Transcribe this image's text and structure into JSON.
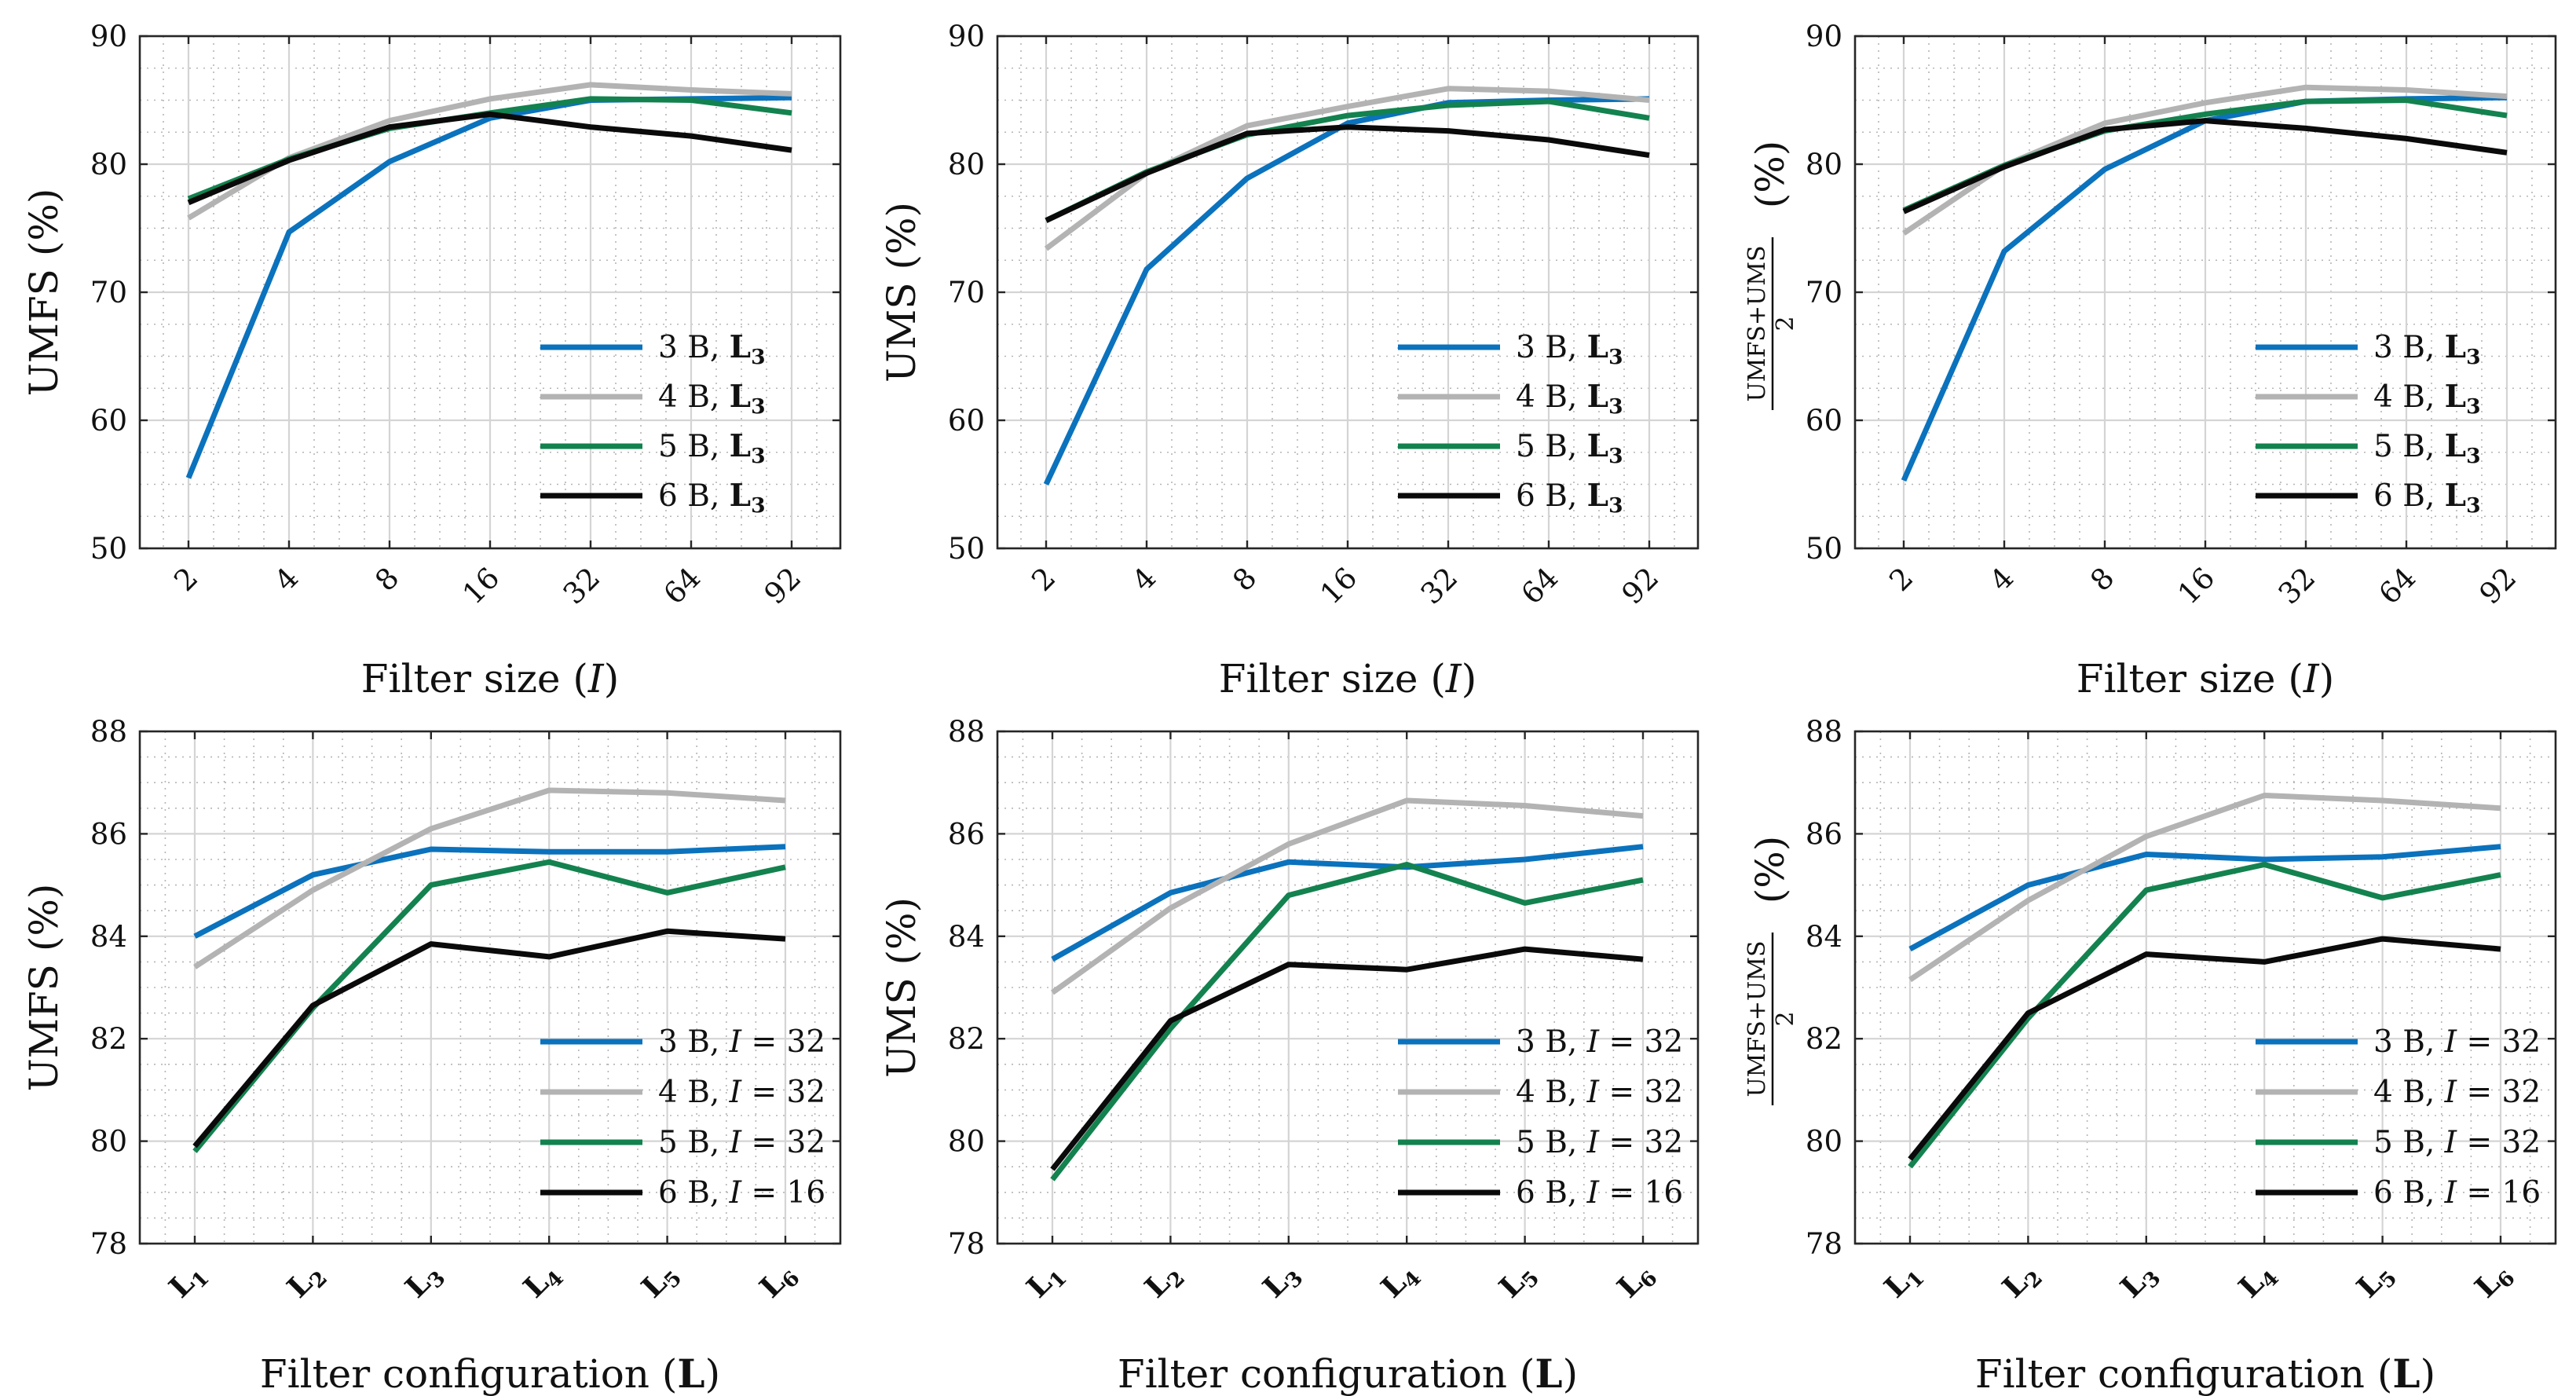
{
  "colors": {
    "series3B": "#0b72bd",
    "series4B": "#b3b3b3",
    "series5B": "#13824f",
    "series6B": "#0a0a0a",
    "grid": "#d4d4d4",
    "minorGrid": "#b5b5b5",
    "axis": "#262626"
  },
  "chart_data": [
    {
      "type": "line",
      "xlabel": "Filter size (I)",
      "ylabel": "UMFS (%)",
      "categories": [
        "2",
        "4",
        "8",
        "16",
        "32",
        "64",
        "92"
      ],
      "ylim": [
        50,
        90
      ],
      "yticks": [
        "50",
        "60",
        "70",
        "80",
        "90"
      ],
      "grid": true,
      "legend_position": "bottom-right",
      "series": [
        {
          "name": "3 B, L3",
          "values": [
            55.5,
            74.7,
            80.2,
            83.6,
            85.0,
            85.1,
            85.2
          ]
        },
        {
          "name": "4 B, L3",
          "values": [
            75.8,
            80.5,
            83.4,
            85.1,
            86.2,
            85.8,
            85.5
          ]
        },
        {
          "name": "5 B, L3",
          "values": [
            77.3,
            80.4,
            82.8,
            84.0,
            85.1,
            85.0,
            84.0
          ]
        },
        {
          "name": "6 B, L3",
          "values": [
            77.0,
            80.3,
            82.9,
            83.9,
            82.9,
            82.2,
            81.1
          ]
        }
      ]
    },
    {
      "type": "line",
      "xlabel": "Filter size (I)",
      "ylabel": "UMS (%)",
      "categories": [
        "2",
        "4",
        "8",
        "16",
        "32",
        "64",
        "92"
      ],
      "ylim": [
        50,
        90
      ],
      "yticks": [
        "50",
        "60",
        "70",
        "80",
        "90"
      ],
      "grid": true,
      "legend_position": "bottom-right",
      "series": [
        {
          "name": "3 B, L3",
          "values": [
            55.0,
            71.8,
            78.9,
            83.2,
            84.8,
            85.0,
            85.1
          ]
        },
        {
          "name": "4 B, L3",
          "values": [
            73.4,
            79.3,
            83.0,
            84.5,
            85.9,
            85.7,
            85.0
          ]
        },
        {
          "name": "5 B, L3",
          "values": [
            75.6,
            79.4,
            82.3,
            83.8,
            84.6,
            84.9,
            83.6
          ]
        },
        {
          "name": "6 B, L3",
          "values": [
            75.6,
            79.3,
            82.4,
            82.9,
            82.6,
            81.9,
            80.7
          ]
        }
      ]
    },
    {
      "type": "line",
      "xlabel": "Filter size (I)",
      "ylabel": "UMFS+UMS / 2 (%)",
      "categories": [
        "2",
        "4",
        "8",
        "16",
        "32",
        "64",
        "92"
      ],
      "ylim": [
        50,
        90
      ],
      "yticks": [
        "50",
        "60",
        "70",
        "80",
        "90"
      ],
      "grid": true,
      "legend_position": "bottom-right",
      "series": [
        {
          "name": "3 B, L3",
          "values": [
            55.3,
            73.2,
            79.6,
            83.4,
            84.9,
            85.1,
            85.2
          ]
        },
        {
          "name": "4 B, L3",
          "values": [
            74.6,
            79.9,
            83.2,
            84.8,
            86.0,
            85.8,
            85.3
          ]
        },
        {
          "name": "5 B, L3",
          "values": [
            76.4,
            79.9,
            82.6,
            83.9,
            84.9,
            85.0,
            83.8
          ]
        },
        {
          "name": "6 B, L3",
          "values": [
            76.3,
            79.8,
            82.7,
            83.4,
            82.8,
            82.0,
            80.9
          ]
        }
      ]
    },
    {
      "type": "line",
      "xlabel": "Filter configuration (L)",
      "ylabel": "UMFS (%)",
      "categories": [
        "L1",
        "L2",
        "L3",
        "L4",
        "L5",
        "L6"
      ],
      "ylim": [
        78,
        88
      ],
      "yticks": [
        "78",
        "80",
        "82",
        "84",
        "86",
        "88"
      ],
      "grid": true,
      "legend_position": "bottom-right",
      "series": [
        {
          "name": "3 B, I = 32",
          "values": [
            84.0,
            85.2,
            85.7,
            85.65,
            85.65,
            85.75
          ]
        },
        {
          "name": "4 B, I = 32",
          "values": [
            83.4,
            84.9,
            86.1,
            86.85,
            86.8,
            86.65
          ]
        },
        {
          "name": "5 B, I = 32",
          "values": [
            79.8,
            82.6,
            85.0,
            85.45,
            84.85,
            85.35
          ]
        },
        {
          "name": "6 B, I = 16",
          "values": [
            79.9,
            82.65,
            83.85,
            83.6,
            84.1,
            83.95
          ]
        }
      ]
    },
    {
      "type": "line",
      "xlabel": "Filter configuration (L)",
      "ylabel": "UMS (%)",
      "categories": [
        "L1",
        "L2",
        "L3",
        "L4",
        "L5",
        "L6"
      ],
      "ylim": [
        78,
        88
      ],
      "yticks": [
        "78",
        "80",
        "82",
        "84",
        "86",
        "88"
      ],
      "grid": true,
      "legend_position": "bottom-right",
      "series": [
        {
          "name": "3 B, I = 32",
          "values": [
            83.55,
            84.85,
            85.45,
            85.35,
            85.5,
            85.75
          ]
        },
        {
          "name": "4 B, I = 32",
          "values": [
            82.9,
            84.55,
            85.8,
            86.65,
            86.55,
            86.35
          ]
        },
        {
          "name": "5 B, I = 32",
          "values": [
            79.25,
            82.2,
            84.8,
            85.4,
            84.65,
            85.1
          ]
        },
        {
          "name": "6 B, I = 16",
          "values": [
            79.45,
            82.35,
            83.45,
            83.35,
            83.75,
            83.55
          ]
        }
      ]
    },
    {
      "type": "line",
      "xlabel": "Filter configuration (L)",
      "ylabel": "UMFS+UMS / 2 (%)",
      "categories": [
        "L1",
        "L2",
        "L3",
        "L4",
        "L5",
        "L6"
      ],
      "ylim": [
        78,
        88
      ],
      "yticks": [
        "78",
        "80",
        "82",
        "84",
        "86",
        "88"
      ],
      "grid": true,
      "legend_position": "bottom-right",
      "series": [
        {
          "name": "3 B, I = 32",
          "values": [
            83.75,
            85.0,
            85.6,
            85.5,
            85.55,
            85.75
          ]
        },
        {
          "name": "4 B, I = 32",
          "values": [
            83.15,
            84.7,
            85.95,
            86.75,
            86.65,
            86.5
          ]
        },
        {
          "name": "5 B, I = 32",
          "values": [
            79.5,
            82.4,
            84.9,
            85.4,
            84.75,
            85.2
          ]
        },
        {
          "name": "6 B, I = 16",
          "values": [
            79.65,
            82.5,
            83.65,
            83.5,
            83.95,
            83.75
          ]
        }
      ]
    }
  ]
}
